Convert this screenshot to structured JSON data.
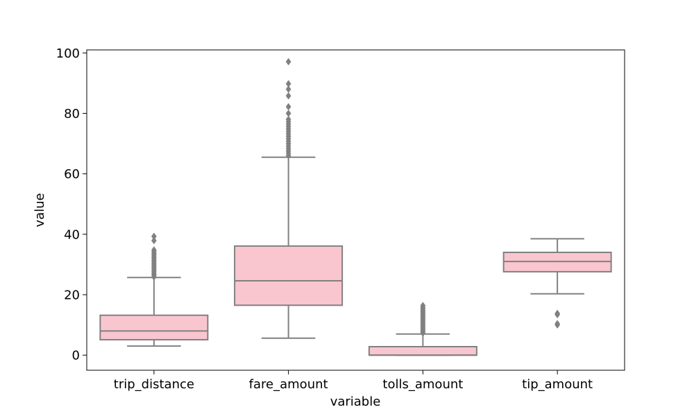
{
  "chart_data": {
    "type": "box",
    "title": "",
    "xlabel": "variable",
    "ylabel": "value",
    "ylim": [
      -5,
      101
    ],
    "yticks": [
      0,
      20,
      40,
      60,
      80,
      100
    ],
    "grid": false,
    "colors": {
      "box_fill": "#f9c6d0",
      "line": "#808080"
    },
    "categories": [
      "trip_distance",
      "fare_amount",
      "tolls_amount",
      "tip_amount"
    ],
    "boxes": [
      {
        "category": "trip_distance",
        "whisker_low": 3.0,
        "q1": 5.1,
        "median": 8.0,
        "q3": 13.2,
        "whisker_high": 25.7,
        "outliers": [
          25.9,
          26.5,
          27.0,
          27.6,
          28.1,
          28.7,
          29.2,
          29.8,
          30.3,
          30.9,
          31.4,
          32.0,
          32.5,
          33.1,
          33.6,
          34.2,
          34.8,
          37.9,
          39.3
        ]
      },
      {
        "category": "fare_amount",
        "whisker_low": 5.6,
        "q1": 16.5,
        "median": 24.6,
        "q3": 36.1,
        "whisker_high": 65.5,
        "outliers": [
          66.0,
          66.8,
          67.6,
          68.4,
          69.2,
          70.0,
          70.8,
          71.6,
          72.4,
          73.2,
          74.0,
          74.8,
          75.6,
          76.4,
          77.2,
          78.0,
          80.0,
          82.2,
          85.8,
          88.0,
          89.8,
          97.1
        ]
      },
      {
        "category": "tolls_amount",
        "whisker_low": 0.0,
        "q1": 0.0,
        "median": 0.0,
        "q3": 2.8,
        "whisker_high": 7.0,
        "outliers": [
          7.3,
          7.8,
          8.3,
          8.8,
          9.3,
          9.8,
          10.3,
          10.8,
          11.3,
          11.8,
          12.3,
          12.8,
          13.3,
          13.8,
          14.3,
          14.8,
          15.3,
          15.8,
          16.4
        ]
      },
      {
        "category": "tip_amount",
        "whisker_low": 20.3,
        "q1": 27.6,
        "median": 31.0,
        "q3": 34.0,
        "whisker_high": 38.5,
        "outliers": [
          10.0,
          10.4,
          13.4,
          13.8
        ]
      }
    ]
  }
}
